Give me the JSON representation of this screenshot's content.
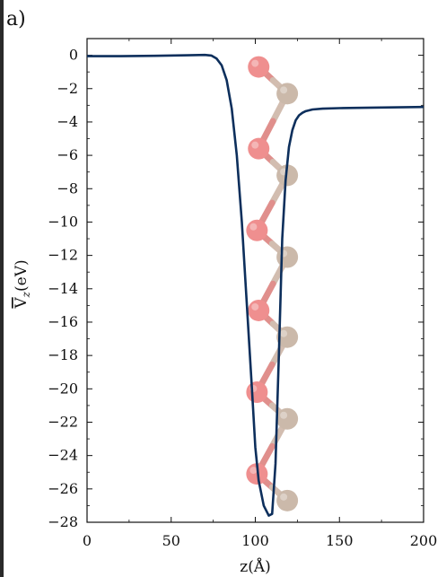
{
  "panel_label": "a)",
  "chart_data": {
    "type": "line",
    "xlabel": "z(Å)",
    "ylabel_main": "V",
    "ylabel_sub": "z",
    "ylabel_unit": "(eV)",
    "xlim": [
      0,
      200
    ],
    "ylim": [
      -28,
      1
    ],
    "xticks": [
      0,
      50,
      100,
      150,
      200
    ],
    "yticks": [
      0,
      -2,
      -4,
      -6,
      -8,
      -10,
      -12,
      -14,
      -16,
      -18,
      -20,
      -22,
      -24,
      -26,
      -28
    ],
    "yticks_labeled": [
      0,
      -2,
      -4,
      -6,
      -8,
      -10,
      -12,
      -14,
      -16,
      -18,
      -20,
      -22,
      -24,
      -26,
      -28
    ],
    "grid": false,
    "colors": {
      "line": "#0d2f5c",
      "atom_pink": "#ef8f8f",
      "atom_tan": "#cbb9aa",
      "bond_pink": "#e08f8c",
      "bond_tan": "#d2bdb0"
    },
    "series": [
      {
        "color": "#0d2f5c",
        "x": [
          0,
          20,
          40,
          60,
          70,
          74,
          77,
          80,
          83,
          86,
          89,
          92,
          95,
          98,
          100,
          102,
          105,
          108,
          110,
          112,
          114,
          116,
          118,
          120,
          122,
          124,
          126,
          128,
          130,
          134,
          140,
          150,
          170,
          200
        ],
        "y": [
          -0.05,
          -0.05,
          -0.03,
          0.0,
          0.02,
          -0.02,
          -0.2,
          -0.6,
          -1.5,
          -3.2,
          -6.0,
          -10.0,
          -15.0,
          -20.0,
          -23.5,
          -25.5,
          -27.0,
          -27.6,
          -27.5,
          -24.5,
          -18.0,
          -11.0,
          -7.5,
          -5.5,
          -4.5,
          -3.9,
          -3.6,
          -3.45,
          -3.35,
          -3.25,
          -3.2,
          -3.17,
          -3.14,
          -3.1
        ]
      }
    ],
    "atoms": {
      "pink": [
        [
          102,
          -0.7
        ],
        [
          102,
          -5.6
        ],
        [
          101,
          -10.5
        ],
        [
          102,
          -15.3
        ],
        [
          101,
          -20.2
        ],
        [
          101,
          -25.1
        ]
      ],
      "tan": [
        [
          119,
          -2.3
        ],
        [
          119,
          -7.2
        ],
        [
          119,
          -12.1
        ],
        [
          119,
          -16.9
        ],
        [
          119,
          -21.8
        ],
        [
          119,
          -26.7
        ]
      ]
    }
  }
}
